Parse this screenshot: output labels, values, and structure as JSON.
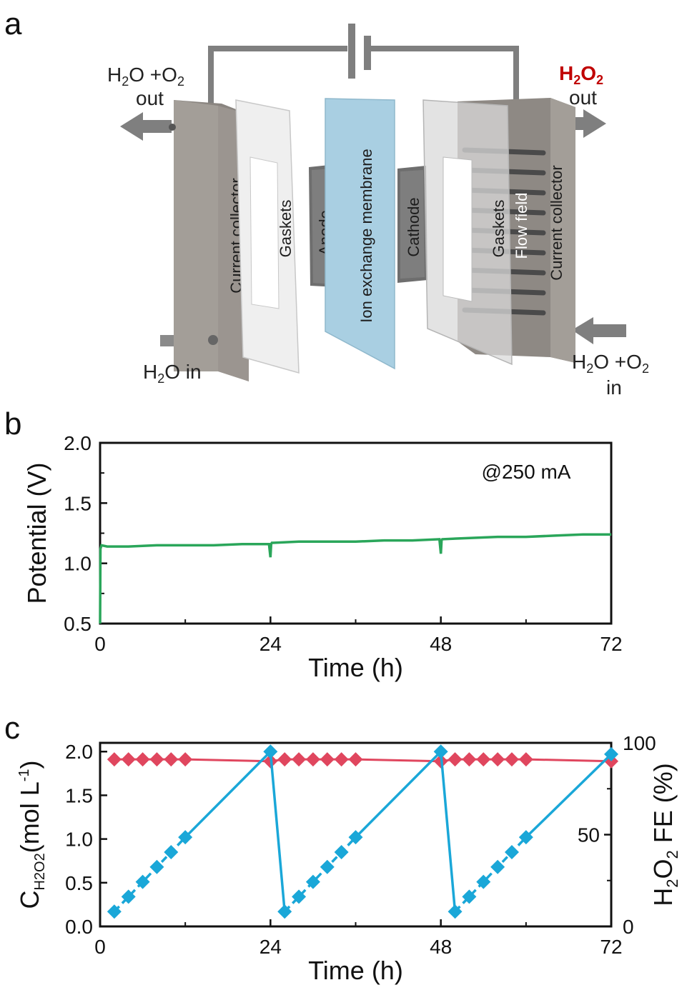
{
  "panels": {
    "a": "a",
    "b": "b",
    "c": "c"
  },
  "diagram": {
    "left_out": {
      "line1_pre": "H",
      "line1_sub1": "2",
      "line1_mid": "O +O",
      "line1_sub2": "2",
      "line2": "out"
    },
    "right_out": {
      "pre": "H",
      "sub1": "2",
      "mid": "O",
      "sub2": "2",
      "line2": "out",
      "color": "#c00000"
    },
    "left_in": {
      "pre": "H",
      "sub": "2",
      "post": "O in"
    },
    "right_in": {
      "line1_pre": "H",
      "line1_sub1": "2",
      "line1_mid": "O +O",
      "line1_sub2": "2",
      "line2": "in"
    },
    "components": {
      "left_collector": "Current collector",
      "left_gaskets": "Gaskets",
      "anode": "Anode",
      "membrane": "Ion exchange membrane",
      "cathode": "Cathode",
      "right_gaskets": "Gaskets",
      "flow_field": "Flow field",
      "right_collector": "Current collector"
    },
    "membrane_label_color": "#e07a2a"
  },
  "chart_data": [
    {
      "type": "line",
      "title": "",
      "xlabel": "Time (h)",
      "ylabel": "Potential (V)",
      "xlim": [
        0,
        72
      ],
      "ylim": [
        0.5,
        2.0
      ],
      "xticks": [
        0,
        24,
        48,
        72
      ],
      "yticks": [
        "0.5",
        "1.0",
        "1.5",
        "2.0"
      ],
      "annotation": "@250 mA",
      "color": "#2aa65a",
      "series": [
        {
          "name": "Potential",
          "x": [
            0,
            0.05,
            0.2,
            1,
            4,
            8,
            12,
            16,
            20,
            23.8,
            24,
            24.1,
            24.2,
            28,
            32,
            36,
            40,
            44,
            47.8,
            48,
            48.1,
            48.2,
            52,
            56,
            60,
            64,
            68,
            72
          ],
          "y": [
            0.5,
            1.12,
            1.15,
            1.14,
            1.14,
            1.15,
            1.15,
            1.15,
            1.16,
            1.16,
            1.05,
            1.16,
            1.17,
            1.18,
            1.18,
            1.18,
            1.19,
            1.19,
            1.2,
            1.08,
            1.19,
            1.2,
            1.21,
            1.22,
            1.22,
            1.23,
            1.24,
            1.24
          ]
        }
      ]
    },
    {
      "type": "line",
      "title": "",
      "xlabel": "Time (h)",
      "ylabel_left": {
        "pre": "C",
        "sub": "H2O2",
        "post": "(mol L",
        "sup": "-1",
        "end": ")"
      },
      "ylabel_right": {
        "pre": "H",
        "sub1": "2",
        "mid": "O",
        "sub2": "2",
        "post": " FE (%)"
      },
      "xlim": [
        0,
        72
      ],
      "ylim_left": [
        0,
        2.1
      ],
      "ylim_right": [
        0,
        100
      ],
      "xticks": [
        0,
        24,
        48,
        72
      ],
      "yticks_left": [
        "0.0",
        "0.5",
        "1.0",
        "1.5",
        "2.0"
      ],
      "yticks_right": [
        "0",
        "50",
        "100"
      ],
      "series": [
        {
          "name": "H2O2 concentration",
          "axis": "left",
          "color": "#1aa7d8",
          "marker": "diamond",
          "x": [
            2,
            4,
            6,
            8,
            10,
            12,
            24,
            26,
            28,
            30,
            32,
            34,
            36,
            48,
            50,
            52,
            54,
            56,
            58,
            60,
            72
          ],
          "y": [
            0.17,
            0.34,
            0.51,
            0.68,
            0.85,
            1.02,
            2.0,
            0.17,
            0.34,
            0.51,
            0.68,
            0.85,
            1.02,
            2.0,
            0.17,
            0.34,
            0.51,
            0.68,
            0.85,
            1.02,
            1.97
          ],
          "dashed_segments": [
            [
              0,
              5
            ],
            [
              7,
              12
            ],
            [
              14,
              19
            ]
          ],
          "solid_segments": [
            [
              5,
              6
            ],
            [
              6,
              7
            ],
            [
              12,
              13
            ],
            [
              13,
              14
            ],
            [
              19,
              20
            ]
          ]
        },
        {
          "name": "H2O2 FE",
          "axis": "right",
          "color": "#e0465e",
          "marker": "diamond",
          "x": [
            2,
            4,
            6,
            8,
            10,
            12,
            24,
            26,
            28,
            30,
            32,
            34,
            36,
            48,
            50,
            52,
            54,
            56,
            58,
            60,
            72
          ],
          "y": [
            91,
            91,
            91,
            91,
            91,
            91,
            90,
            91,
            91,
            91,
            91,
            91,
            91,
            90,
            91,
            91,
            91,
            91,
            91,
            91,
            90
          ]
        }
      ]
    }
  ]
}
